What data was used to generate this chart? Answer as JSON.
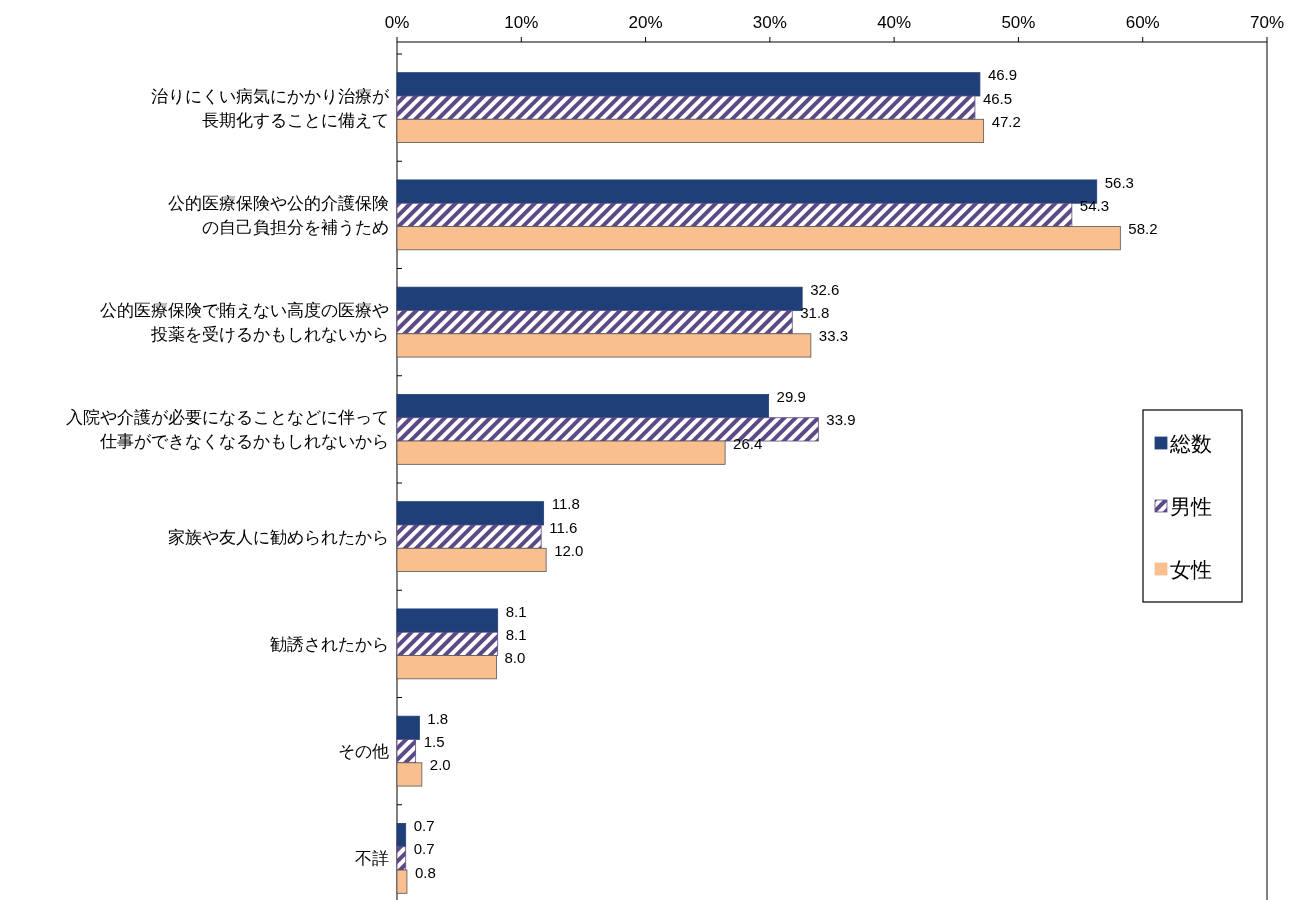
{
  "chart_data": {
    "type": "bar",
    "orientation": "horizontal",
    "categories": [
      "治りにくい病気にかかり治療が長期化することに備えて",
      "公的医療保険や公的介護保険の自己負担分を補うため",
      "公的医療保険で賄えない高度の医療や投薬を受けるかもしれないから",
      "入院や介護が必要になることなどに伴って仕事ができなくなるかもしれないから",
      "家族や友人に勧められたから",
      "勧誘されたから",
      "その他",
      "不詳"
    ],
    "series": [
      {
        "name": "総数",
        "color": "#1f3f78",
        "values": [
          46.9,
          56.3,
          32.6,
          29.9,
          11.8,
          8.1,
          1.8,
          0.7
        ],
        "value_labels": [
          "46.9",
          "56.3",
          "32.6",
          "29.9",
          "11.8",
          "8.1",
          "1.8",
          "0.7"
        ]
      },
      {
        "name": "男性",
        "color": "#5b4a85",
        "values": [
          46.5,
          54.3,
          31.8,
          33.9,
          11.6,
          8.1,
          1.5,
          0.7
        ],
        "value_labels": [
          "46.5",
          "54.3",
          "31.8",
          "33.9",
          "11.6",
          "8.1",
          "1.5",
          "0.7"
        ]
      },
      {
        "name": "女性",
        "color": "#fabf8f",
        "values": [
          47.2,
          58.2,
          33.3,
          26.4,
          12.0,
          8.0,
          2.0,
          0.8
        ],
        "value_labels": [
          "47.2",
          "58.2",
          "33.3",
          "26.4",
          "12.0",
          "8.0",
          "2.0",
          "0.8"
        ]
      }
    ],
    "xlim": [
      0,
      70
    ],
    "xticks": [
      {
        "value": 0,
        "label": "0%"
      },
      {
        "value": 10,
        "label": "10%"
      },
      {
        "value": 20,
        "label": "20%"
      },
      {
        "value": 30,
        "label": "30%"
      },
      {
        "value": 40,
        "label": "40%"
      },
      {
        "value": 50,
        "label": "50%"
      },
      {
        "value": 60,
        "label": "60%"
      },
      {
        "value": 70,
        "label": "70%"
      }
    ],
    "grid": false,
    "legend": "right"
  }
}
